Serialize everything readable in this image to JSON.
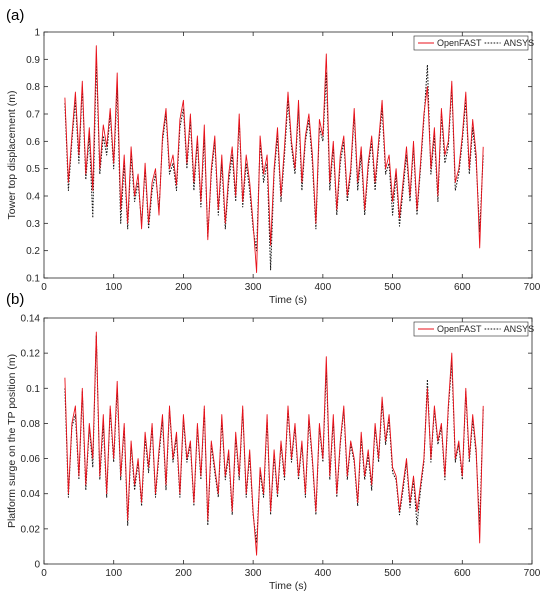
{
  "chart_data": [
    {
      "type": "line",
      "panel_label": "(a)",
      "xlabel": "Time (s)",
      "ylabel": "Tower top displacement (m)",
      "xlim": [
        0,
        700
      ],
      "ylim": [
        0.1,
        1
      ],
      "xticks": [
        0,
        100,
        200,
        300,
        400,
        500,
        600,
        700
      ],
      "yticks": [
        0.1,
        0.2,
        0.3,
        0.4,
        0.5,
        0.6,
        0.7,
        0.8,
        0.9,
        1
      ],
      "grid": false,
      "legend_position": "top-right",
      "series": [
        {
          "name": "OpenFAST",
          "color": "#e8121b",
          "style": "solid",
          "x": [
            30,
            35,
            40,
            45,
            50,
            55,
            60,
            65,
            70,
            75,
            80,
            85,
            90,
            95,
            100,
            105,
            110,
            115,
            120,
            125,
            130,
            135,
            140,
            145,
            150,
            155,
            160,
            165,
            170,
            175,
            180,
            185,
            190,
            195,
            200,
            205,
            210,
            215,
            220,
            225,
            230,
            235,
            240,
            245,
            250,
            255,
            260,
            265,
            270,
            275,
            280,
            285,
            290,
            295,
            300,
            305,
            310,
            315,
            320,
            325,
            330,
            335,
            340,
            345,
            350,
            355,
            360,
            365,
            370,
            375,
            380,
            385,
            390,
            395,
            400,
            405,
            410,
            415,
            420,
            425,
            430,
            435,
            440,
            445,
            450,
            455,
            460,
            465,
            470,
            475,
            480,
            485,
            490,
            495,
            500,
            505,
            510,
            515,
            520,
            525,
            530,
            535,
            540,
            545,
            550,
            555,
            560,
            565,
            570,
            575,
            580,
            585,
            590,
            595,
            600,
            605,
            610,
            615,
            620,
            625,
            630
          ],
          "values": [
            0.76,
            0.45,
            0.62,
            0.78,
            0.55,
            0.82,
            0.48,
            0.65,
            0.42,
            0.95,
            0.5,
            0.66,
            0.58,
            0.72,
            0.52,
            0.85,
            0.35,
            0.55,
            0.3,
            0.58,
            0.4,
            0.48,
            0.28,
            0.52,
            0.3,
            0.45,
            0.5,
            0.33,
            0.62,
            0.72,
            0.5,
            0.55,
            0.44,
            0.68,
            0.75,
            0.52,
            0.7,
            0.45,
            0.62,
            0.38,
            0.66,
            0.24,
            0.5,
            0.62,
            0.35,
            0.55,
            0.3,
            0.48,
            0.58,
            0.4,
            0.7,
            0.38,
            0.55,
            0.45,
            0.3,
            0.12,
            0.62,
            0.48,
            0.55,
            0.22,
            0.5,
            0.65,
            0.4,
            0.58,
            0.78,
            0.6,
            0.5,
            0.75,
            0.45,
            0.62,
            0.7,
            0.55,
            0.3,
            0.68,
            0.62,
            0.92,
            0.45,
            0.6,
            0.35,
            0.55,
            0.62,
            0.4,
            0.5,
            0.72,
            0.45,
            0.58,
            0.35,
            0.52,
            0.62,
            0.45,
            0.6,
            0.75,
            0.5,
            0.55,
            0.38,
            0.5,
            0.32,
            0.45,
            0.58,
            0.4,
            0.6,
            0.35,
            0.52,
            0.7,
            0.8,
            0.5,
            0.65,
            0.4,
            0.72,
            0.55,
            0.6,
            0.82,
            0.45,
            0.5,
            0.62,
            0.78,
            0.5,
            0.68,
            0.55,
            0.21,
            0.58
          ]
        },
        {
          "name": "ANSYS",
          "color": "#111111",
          "style": "dotted",
          "x": [
            30,
            35,
            40,
            45,
            50,
            55,
            60,
            65,
            70,
            75,
            80,
            85,
            90,
            95,
            100,
            105,
            110,
            115,
            120,
            125,
            130,
            135,
            140,
            145,
            150,
            155,
            160,
            165,
            170,
            175,
            180,
            185,
            190,
            195,
            200,
            205,
            210,
            215,
            220,
            225,
            230,
            235,
            240,
            245,
            250,
            255,
            260,
            265,
            270,
            275,
            280,
            285,
            290,
            295,
            300,
            305,
            310,
            315,
            320,
            325,
            330,
            335,
            340,
            345,
            350,
            355,
            360,
            365,
            370,
            375,
            380,
            385,
            390,
            395,
            400,
            405,
            410,
            415,
            420,
            425,
            430,
            435,
            440,
            445,
            450,
            455,
            460,
            465,
            470,
            475,
            480,
            485,
            490,
            495,
            500,
            505,
            510,
            515,
            520,
            525,
            530,
            535,
            540,
            545,
            550,
            555,
            560,
            565,
            570,
            575,
            580,
            585,
            590,
            595,
            600,
            605,
            610,
            615,
            620,
            625,
            630
          ],
          "values": [
            0.74,
            0.42,
            0.6,
            0.75,
            0.52,
            0.8,
            0.46,
            0.62,
            0.32,
            0.9,
            0.48,
            0.62,
            0.55,
            0.7,
            0.5,
            0.8,
            0.3,
            0.52,
            0.28,
            0.55,
            0.38,
            0.45,
            0.3,
            0.5,
            0.28,
            0.42,
            0.48,
            0.35,
            0.6,
            0.7,
            0.48,
            0.52,
            0.42,
            0.65,
            0.72,
            0.5,
            0.68,
            0.42,
            0.6,
            0.36,
            0.62,
            0.25,
            0.48,
            0.6,
            0.33,
            0.52,
            0.28,
            0.45,
            0.55,
            0.38,
            0.68,
            0.36,
            0.52,
            0.42,
            0.28,
            0.2,
            0.6,
            0.45,
            0.52,
            0.13,
            0.48,
            0.62,
            0.38,
            0.55,
            0.75,
            0.58,
            0.48,
            0.72,
            0.42,
            0.6,
            0.68,
            0.52,
            0.28,
            0.65,
            0.6,
            0.85,
            0.42,
            0.58,
            0.33,
            0.52,
            0.6,
            0.38,
            0.48,
            0.7,
            0.42,
            0.55,
            0.33,
            0.5,
            0.6,
            0.42,
            0.58,
            0.72,
            0.48,
            0.52,
            0.33,
            0.48,
            0.29,
            0.42,
            0.55,
            0.38,
            0.58,
            0.33,
            0.5,
            0.68,
            0.88,
            0.48,
            0.62,
            0.38,
            0.7,
            0.52,
            0.58,
            0.8,
            0.42,
            0.48,
            0.6,
            0.75,
            0.48,
            0.65,
            0.52,
            0.27,
            0.55
          ]
        }
      ]
    },
    {
      "type": "line",
      "panel_label": "(b)",
      "xlabel": "Time (s)",
      "ylabel": "Platform surge on the TP position (m)",
      "xlim": [
        0,
        700
      ],
      "ylim": [
        0,
        0.14
      ],
      "xticks": [
        0,
        100,
        200,
        300,
        400,
        500,
        600,
        700
      ],
      "yticks": [
        0,
        0.02,
        0.04,
        0.06,
        0.08,
        0.1,
        0.12,
        0.14
      ],
      "grid": false,
      "legend_position": "top-right",
      "series": [
        {
          "name": "OpenFAST",
          "color": "#e8121b",
          "style": "solid",
          "x": [
            30,
            35,
            40,
            45,
            50,
            55,
            60,
            65,
            70,
            75,
            80,
            85,
            90,
            95,
            100,
            105,
            110,
            115,
            120,
            125,
            130,
            135,
            140,
            145,
            150,
            155,
            160,
            165,
            170,
            175,
            180,
            185,
            190,
            195,
            200,
            205,
            210,
            215,
            220,
            225,
            230,
            235,
            240,
            245,
            250,
            255,
            260,
            265,
            270,
            275,
            280,
            285,
            290,
            295,
            300,
            305,
            310,
            315,
            320,
            325,
            330,
            335,
            340,
            345,
            350,
            355,
            360,
            365,
            370,
            375,
            380,
            385,
            390,
            395,
            400,
            405,
            410,
            415,
            420,
            425,
            430,
            435,
            440,
            445,
            450,
            455,
            460,
            465,
            470,
            475,
            480,
            485,
            490,
            495,
            500,
            505,
            510,
            515,
            520,
            525,
            530,
            535,
            540,
            545,
            550,
            555,
            560,
            565,
            570,
            575,
            580,
            585,
            590,
            595,
            600,
            605,
            610,
            615,
            620,
            625,
            630
          ],
          "values": [
            0.106,
            0.04,
            0.08,
            0.09,
            0.05,
            0.1,
            0.045,
            0.08,
            0.06,
            0.132,
            0.05,
            0.085,
            0.04,
            0.09,
            0.06,
            0.104,
            0.05,
            0.08,
            0.025,
            0.07,
            0.045,
            0.06,
            0.035,
            0.075,
            0.055,
            0.08,
            0.04,
            0.065,
            0.085,
            0.045,
            0.09,
            0.06,
            0.075,
            0.04,
            0.085,
            0.06,
            0.07,
            0.035,
            0.08,
            0.05,
            0.09,
            0.025,
            0.07,
            0.055,
            0.04,
            0.085,
            0.05,
            0.065,
            0.03,
            0.075,
            0.05,
            0.09,
            0.04,
            0.065,
            0.03,
            0.005,
            0.055,
            0.04,
            0.085,
            0.03,
            0.065,
            0.04,
            0.07,
            0.05,
            0.09,
            0.06,
            0.08,
            0.05,
            0.07,
            0.04,
            0.085,
            0.06,
            0.03,
            0.08,
            0.06,
            0.118,
            0.05,
            0.085,
            0.04,
            0.07,
            0.09,
            0.05,
            0.07,
            0.06,
            0.035,
            0.075,
            0.05,
            0.065,
            0.045,
            0.08,
            0.06,
            0.095,
            0.07,
            0.085,
            0.055,
            0.05,
            0.03,
            0.045,
            0.06,
            0.035,
            0.05,
            0.03,
            0.045,
            0.06,
            0.1,
            0.06,
            0.09,
            0.07,
            0.08,
            0.05,
            0.09,
            0.12,
            0.06,
            0.07,
            0.05,
            0.1,
            0.06,
            0.085,
            0.065,
            0.012,
            0.09
          ]
        },
        {
          "name": "ANSYS",
          "color": "#111111",
          "style": "dotted",
          "x": [
            30,
            35,
            40,
            45,
            50,
            55,
            60,
            65,
            70,
            75,
            80,
            85,
            90,
            95,
            100,
            105,
            110,
            115,
            120,
            125,
            130,
            135,
            140,
            145,
            150,
            155,
            160,
            165,
            170,
            175,
            180,
            185,
            190,
            195,
            200,
            205,
            210,
            215,
            220,
            225,
            230,
            235,
            240,
            245,
            250,
            255,
            260,
            265,
            270,
            275,
            280,
            285,
            290,
            295,
            300,
            305,
            310,
            315,
            320,
            325,
            330,
            335,
            340,
            345,
            350,
            355,
            360,
            365,
            370,
            375,
            380,
            385,
            390,
            395,
            400,
            405,
            410,
            415,
            420,
            425,
            430,
            435,
            440,
            445,
            450,
            455,
            460,
            465,
            470,
            475,
            480,
            485,
            490,
            495,
            500,
            505,
            510,
            515,
            520,
            525,
            530,
            535,
            540,
            545,
            550,
            555,
            560,
            565,
            570,
            575,
            580,
            585,
            590,
            595,
            600,
            605,
            610,
            615,
            620,
            625,
            630
          ],
          "values": [
            0.1,
            0.038,
            0.078,
            0.085,
            0.048,
            0.098,
            0.042,
            0.078,
            0.055,
            0.13,
            0.048,
            0.08,
            0.038,
            0.088,
            0.058,
            0.1,
            0.048,
            0.078,
            0.022,
            0.068,
            0.042,
            0.058,
            0.033,
            0.072,
            0.052,
            0.078,
            0.038,
            0.062,
            0.082,
            0.042,
            0.088,
            0.058,
            0.072,
            0.038,
            0.082,
            0.058,
            0.068,
            0.033,
            0.078,
            0.048,
            0.088,
            0.022,
            0.068,
            0.052,
            0.038,
            0.082,
            0.048,
            0.062,
            0.028,
            0.072,
            0.048,
            0.088,
            0.038,
            0.062,
            0.028,
            0.012,
            0.052,
            0.038,
            0.082,
            0.028,
            0.062,
            0.038,
            0.068,
            0.048,
            0.088,
            0.058,
            0.078,
            0.048,
            0.068,
            0.038,
            0.082,
            0.058,
            0.028,
            0.078,
            0.058,
            0.112,
            0.048,
            0.082,
            0.038,
            0.068,
            0.088,
            0.048,
            0.068,
            0.058,
            0.033,
            0.072,
            0.048,
            0.062,
            0.042,
            0.078,
            0.058,
            0.092,
            0.068,
            0.082,
            0.052,
            0.048,
            0.028,
            0.042,
            0.058,
            0.032,
            0.048,
            0.022,
            0.042,
            0.058,
            0.105,
            0.058,
            0.088,
            0.068,
            0.078,
            0.048,
            0.088,
            0.115,
            0.058,
            0.068,
            0.048,
            0.098,
            0.058,
            0.082,
            0.062,
            0.022,
            0.088
          ]
        }
      ]
    }
  ]
}
